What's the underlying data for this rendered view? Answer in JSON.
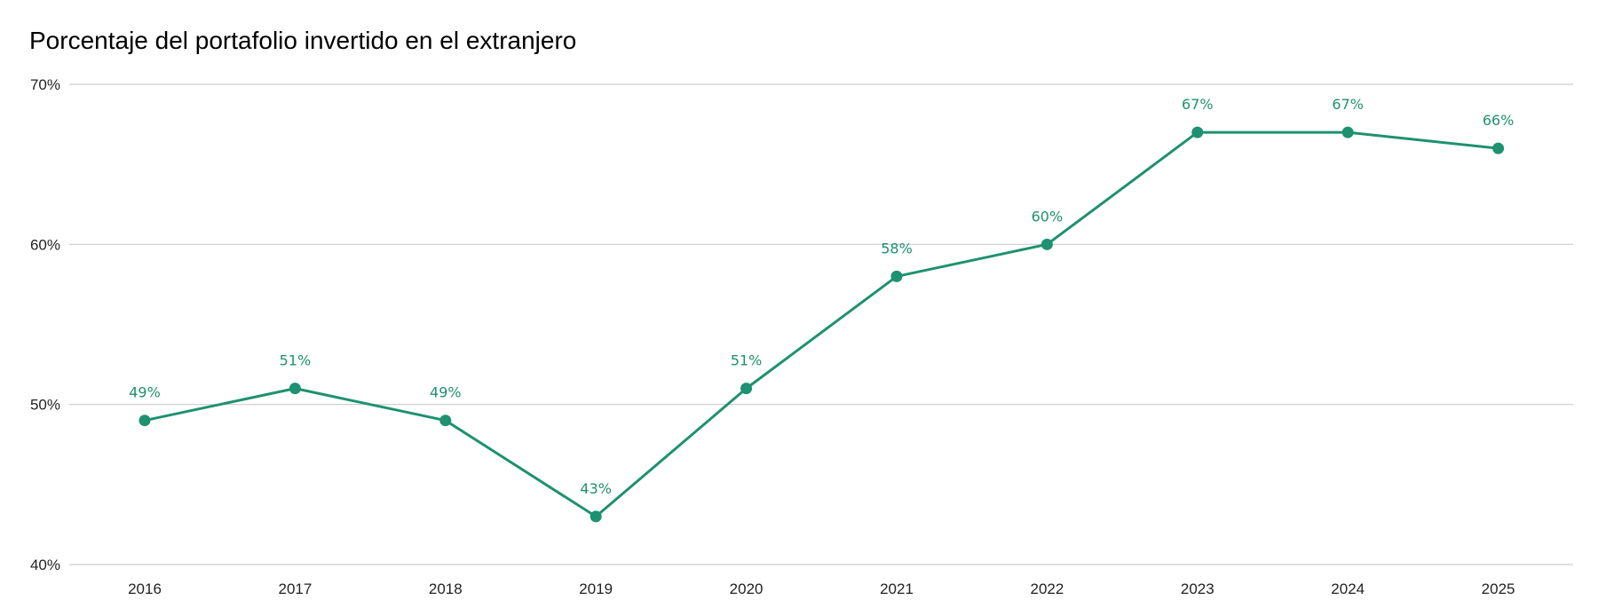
{
  "chart_data": {
    "type": "line",
    "title": "Porcentaje del portafolio invertido en el extranjero",
    "xlabel": "",
    "ylabel": "",
    "categories": [
      "2016",
      "2017",
      "2018",
      "2019",
      "2020",
      "2021",
      "2022",
      "2023",
      "2024",
      "2025"
    ],
    "series": [
      {
        "values": [
          49,
          51,
          49,
          43,
          51,
          58,
          60,
          67,
          67,
          66
        ],
        "labels": [
          "49%",
          "51%",
          "49%",
          "43%",
          "51%",
          "58%",
          "60%",
          "67%",
          "67%",
          "66%"
        ]
      }
    ],
    "ylim": [
      40,
      70
    ],
    "yticks": [
      40,
      50,
      60,
      70
    ],
    "ytick_labels": [
      "40%",
      "50%",
      "60%",
      "70%"
    ],
    "grid": true,
    "legend": "none",
    "colors": {
      "series": "#1e9170",
      "grid": "#cccccc"
    }
  }
}
